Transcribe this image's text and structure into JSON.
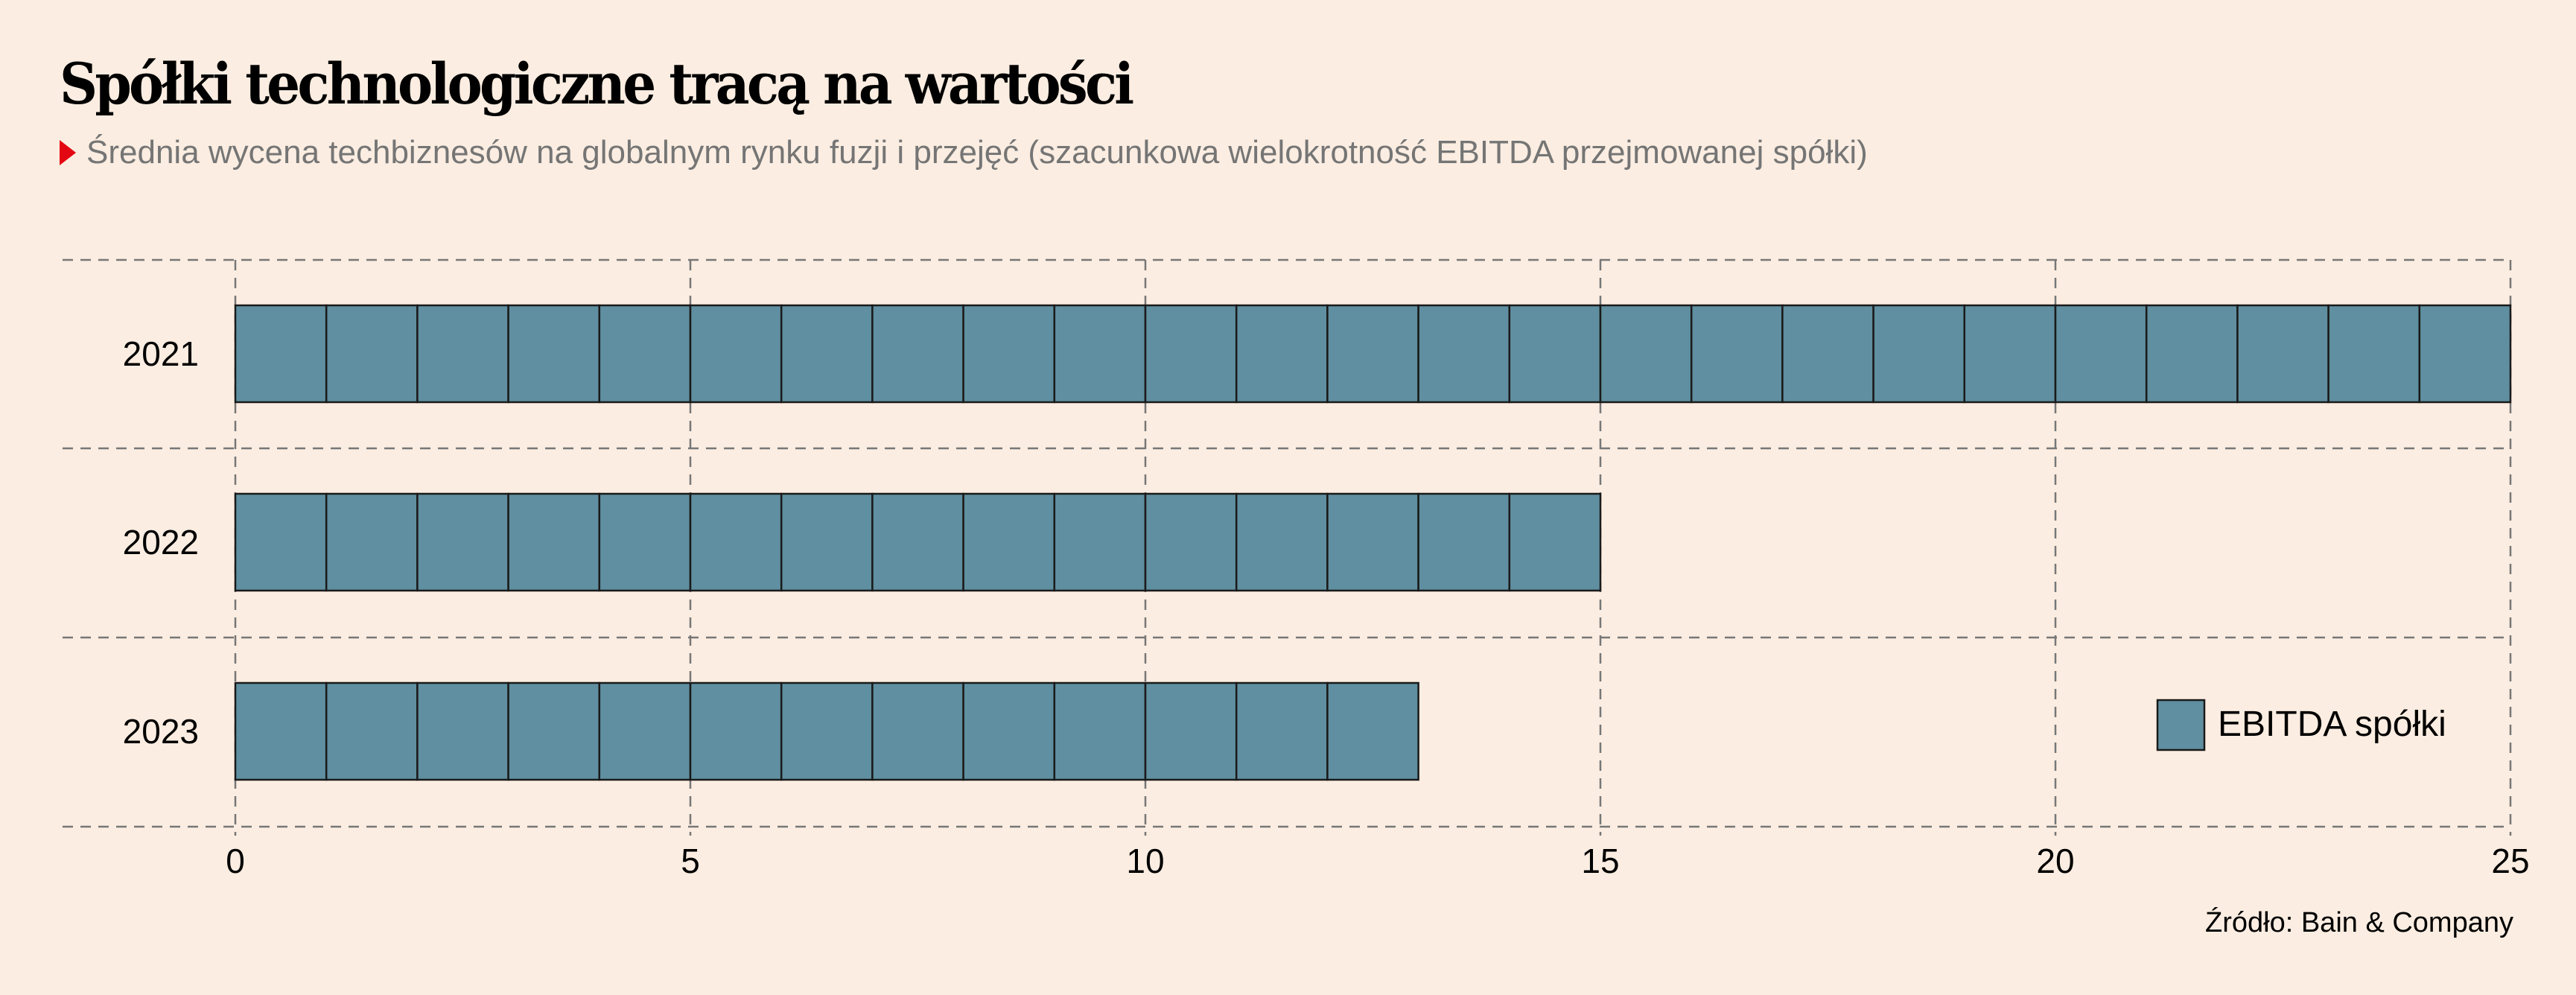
{
  "header": {
    "title": "Spółki technologiczne tracą na wartości",
    "subtitle": "Średnia wycena techbiznesów na globalnym rynku fuzji i przejęć (szacunkowa wielokrotność EBITDA przejmowanej spółki)"
  },
  "source": "Źródło: Bain & Company",
  "colors": {
    "background": "#fbede1",
    "bar": "#5f8fa0",
    "grid": "#777777",
    "accent": "#e30613"
  },
  "chart_data": {
    "type": "bar",
    "orientation": "horizontal",
    "style": "unit squares",
    "categories": [
      "2021",
      "2022",
      "2023"
    ],
    "series": [
      {
        "name": "EBITDA spółki",
        "values": [
          25,
          15,
          13
        ]
      }
    ],
    "xlim": [
      0,
      25
    ],
    "xticks": [
      "0",
      "5",
      "10",
      "15",
      "20",
      "25"
    ],
    "grid": true,
    "legend": {
      "position": "bottom-right",
      "entries": [
        "EBITDA spółki"
      ]
    }
  }
}
